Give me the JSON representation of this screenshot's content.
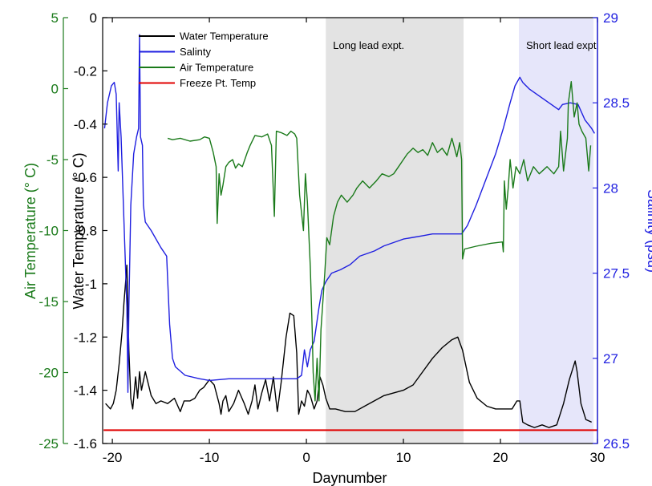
{
  "chart_data": {
    "type": "line",
    "xlabel": "Daynumber",
    "xlim": [
      -21,
      30
    ],
    "xticks": [
      -20,
      -10,
      0,
      10,
      20,
      30
    ],
    "shaded_regions": [
      {
        "label": "Long lead expt.",
        "x": [
          2,
          16.2
        ],
        "color": "#e3e3e3"
      },
      {
        "label": "Short lead expt",
        "x": [
          21.9,
          29.6
        ],
        "color": "#e6e6fa"
      }
    ],
    "axes": {
      "water": {
        "label": "Water Temperature (° C)",
        "ylim": [
          -1.6,
          0
        ],
        "ticks": [
          0,
          -0.2,
          -0.4,
          -0.6,
          -0.8,
          -1,
          -1.2,
          -1.4,
          -1.6
        ],
        "color": "#000000"
      },
      "air": {
        "label": "Air Temperature (° C)",
        "ylim": [
          -25,
          5
        ],
        "ticks": [
          5,
          0,
          -5,
          -10,
          -15,
          -20,
          -25
        ],
        "color": "#1a7a1a"
      },
      "salinity": {
        "label": "Salinity (psu)",
        "ylim": [
          26.5,
          29
        ],
        "ticks": [
          29,
          28.5,
          28,
          27.5,
          27,
          26.5
        ],
        "color": "#1f1fe0"
      }
    },
    "legend": [
      "Water Temperature",
      "Salinty",
      "Air Temperature",
      "Freeze Pt. Temp"
    ],
    "legend_position": "top-left",
    "series": [
      {
        "name": "Water Temperature",
        "axis": "water",
        "color": "#000000",
        "points": [
          [
            -20.7,
            -1.45
          ],
          [
            -20.2,
            -1.47
          ],
          [
            -19.9,
            -1.45
          ],
          [
            -19.6,
            -1.4
          ],
          [
            -19.3,
            -1.3
          ],
          [
            -19,
            -1.18
          ],
          [
            -18.8,
            -1.07
          ],
          [
            -18.6,
            -0.98
          ],
          [
            -18.5,
            -0.93
          ],
          [
            -18.3,
            -1.25
          ],
          [
            -18.1,
            -1.43
          ],
          [
            -17.9,
            -1.47
          ],
          [
            -17.6,
            -1.35
          ],
          [
            -17.4,
            -1.43
          ],
          [
            -17.2,
            -1.33
          ],
          [
            -17,
            -1.4
          ],
          [
            -16.6,
            -1.33
          ],
          [
            -16,
            -1.42
          ],
          [
            -15.5,
            -1.45
          ],
          [
            -15,
            -1.44
          ],
          [
            -14.3,
            -1.45
          ],
          [
            -13.6,
            -1.43
          ],
          [
            -13,
            -1.48
          ],
          [
            -12.6,
            -1.44
          ],
          [
            -12,
            -1.44
          ],
          [
            -11.5,
            -1.43
          ],
          [
            -11,
            -1.4
          ],
          [
            -10.6,
            -1.39
          ],
          [
            -10,
            -1.36
          ],
          [
            -9.5,
            -1.38
          ],
          [
            -9,
            -1.45
          ],
          [
            -8.8,
            -1.49
          ],
          [
            -8.6,
            -1.44
          ],
          [
            -8.3,
            -1.42
          ],
          [
            -8,
            -1.48
          ],
          [
            -7.5,
            -1.45
          ],
          [
            -7,
            -1.4
          ],
          [
            -6.4,
            -1.45
          ],
          [
            -6,
            -1.49
          ],
          [
            -5.6,
            -1.44
          ],
          [
            -5.3,
            -1.38
          ],
          [
            -5,
            -1.47
          ],
          [
            -4.6,
            -1.41
          ],
          [
            -4.2,
            -1.36
          ],
          [
            -3.8,
            -1.44
          ],
          [
            -3.4,
            -1.35
          ],
          [
            -3,
            -1.48
          ],
          [
            -2.6,
            -1.37
          ],
          [
            -2.1,
            -1.2
          ],
          [
            -1.7,
            -1.11
          ],
          [
            -1.3,
            -1.12
          ],
          [
            -1,
            -1.26
          ],
          [
            -0.8,
            -1.49
          ],
          [
            -0.5,
            -1.44
          ],
          [
            -0.2,
            -1.46
          ],
          [
            0.1,
            -1.4
          ],
          [
            0.4,
            -1.42
          ],
          [
            0.8,
            -1.47
          ],
          [
            1.1,
            -1.44
          ],
          [
            1.4,
            -1.35
          ],
          [
            1.7,
            -1.38
          ],
          [
            2,
            -1.43
          ],
          [
            2.4,
            -1.47
          ],
          [
            3,
            -1.47
          ],
          [
            4,
            -1.48
          ],
          [
            5,
            -1.48
          ],
          [
            6,
            -1.46
          ],
          [
            7,
            -1.44
          ],
          [
            8,
            -1.42
          ],
          [
            9,
            -1.41
          ],
          [
            10,
            -1.4
          ],
          [
            11,
            -1.38
          ],
          [
            12,
            -1.33
          ],
          [
            13,
            -1.28
          ],
          [
            14,
            -1.24
          ],
          [
            15,
            -1.21
          ],
          [
            15.6,
            -1.2
          ],
          [
            16.1,
            -1.25
          ],
          [
            16.8,
            -1.37
          ],
          [
            17.6,
            -1.43
          ],
          [
            18.6,
            -1.46
          ],
          [
            19.5,
            -1.47
          ],
          [
            20.4,
            -1.47
          ],
          [
            21.2,
            -1.47
          ],
          [
            21.7,
            -1.44
          ],
          [
            22,
            -1.44
          ],
          [
            22.3,
            -1.52
          ],
          [
            22.8,
            -1.53
          ],
          [
            23.5,
            -1.54
          ],
          [
            24.3,
            -1.53
          ],
          [
            25,
            -1.54
          ],
          [
            25.8,
            -1.53
          ],
          [
            26.5,
            -1.45
          ],
          [
            27.1,
            -1.36
          ],
          [
            27.7,
            -1.29
          ],
          [
            27.9,
            -1.33
          ],
          [
            28.3,
            -1.45
          ],
          [
            28.8,
            -1.51
          ],
          [
            29.4,
            -1.52
          ]
        ]
      },
      {
        "name": "Salinty",
        "axis": "salinity",
        "color": "#1f1fe0",
        "points": [
          [
            -20.8,
            28.35
          ],
          [
            -20.5,
            28.5
          ],
          [
            -20.1,
            28.6
          ],
          [
            -19.8,
            28.62
          ],
          [
            -19.6,
            28.55
          ],
          [
            -19.4,
            28.1
          ],
          [
            -19.3,
            28.5
          ],
          [
            -19.1,
            28.3
          ],
          [
            -18.8,
            27.8
          ],
          [
            -18.5,
            27.3
          ],
          [
            -18.4,
            26.8
          ],
          [
            -18.3,
            27.3
          ],
          [
            -18.1,
            27.9
          ],
          [
            -17.8,
            28.2
          ],
          [
            -17.5,
            28.3
          ],
          [
            -17.3,
            28.35
          ],
          [
            -17.2,
            28.9
          ],
          [
            -17.1,
            28.3
          ],
          [
            -16.9,
            28.25
          ],
          [
            -16.8,
            27.9
          ],
          [
            -16.6,
            27.8
          ],
          [
            -16,
            27.75
          ],
          [
            -15,
            27.65
          ],
          [
            -14.4,
            27.6
          ],
          [
            -14.1,
            27.2
          ],
          [
            -13.8,
            27
          ],
          [
            -13.5,
            26.95
          ],
          [
            -12.5,
            26.9
          ],
          [
            -11,
            26.88
          ],
          [
            -10,
            26.87
          ],
          [
            -8,
            26.88
          ],
          [
            -6,
            26.88
          ],
          [
            -4,
            26.88
          ],
          [
            -2,
            26.88
          ],
          [
            -1,
            26.88
          ],
          [
            -0.5,
            26.9
          ],
          [
            -0.2,
            27.05
          ],
          [
            0.1,
            26.95
          ],
          [
            0.4,
            27.05
          ],
          [
            0.8,
            27.1
          ],
          [
            1.3,
            27.3
          ],
          [
            1.6,
            27.4
          ],
          [
            2,
            27.45
          ],
          [
            2.6,
            27.5
          ],
          [
            3.5,
            27.52
          ],
          [
            4.5,
            27.55
          ],
          [
            5.5,
            27.6
          ],
          [
            7,
            27.63
          ],
          [
            8,
            27.66
          ],
          [
            9,
            27.68
          ],
          [
            10,
            27.7
          ],
          [
            11,
            27.71
          ],
          [
            12,
            27.72
          ],
          [
            13,
            27.73
          ],
          [
            14,
            27.73
          ],
          [
            15,
            27.73
          ],
          [
            16,
            27.73
          ],
          [
            16.6,
            27.78
          ],
          [
            17.5,
            27.9
          ],
          [
            18.5,
            28.05
          ],
          [
            19.5,
            28.2
          ],
          [
            20.3,
            28.35
          ],
          [
            21,
            28.5
          ],
          [
            21.5,
            28.6
          ],
          [
            22,
            28.65
          ],
          [
            22.3,
            28.62
          ],
          [
            23,
            28.58
          ],
          [
            24,
            28.54
          ],
          [
            25,
            28.5
          ],
          [
            26,
            28.46
          ],
          [
            26.4,
            28.49
          ],
          [
            27.2,
            28.5
          ],
          [
            28,
            28.49
          ],
          [
            28.7,
            28.4
          ],
          [
            29.4,
            28.35
          ],
          [
            29.7,
            28.32
          ]
        ]
      },
      {
        "name": "Air Temperature",
        "axis": "air",
        "color": "#1a7a1a",
        "points": [
          [
            -14.3,
            -3.5
          ],
          [
            -13.8,
            -3.6
          ],
          [
            -13,
            -3.5
          ],
          [
            -12,
            -3.7
          ],
          [
            -11,
            -3.6
          ],
          [
            -10.5,
            -3.4
          ],
          [
            -10,
            -3.5
          ],
          [
            -9.6,
            -4.5
          ],
          [
            -9.3,
            -5.5
          ],
          [
            -9.2,
            -9.5
          ],
          [
            -9,
            -6
          ],
          [
            -8.8,
            -7.5
          ],
          [
            -8.6,
            -6.8
          ],
          [
            -8.3,
            -5.5
          ],
          [
            -8,
            -5.2
          ],
          [
            -7.6,
            -5
          ],
          [
            -7.3,
            -5.6
          ],
          [
            -7,
            -5.3
          ],
          [
            -6.6,
            -5.5
          ],
          [
            -6.1,
            -4.5
          ],
          [
            -5.8,
            -4
          ],
          [
            -5.3,
            -3.3
          ],
          [
            -4.6,
            -3.4
          ],
          [
            -4,
            -3.2
          ],
          [
            -3.6,
            -4
          ],
          [
            -3.3,
            -9
          ],
          [
            -3.1,
            -3
          ],
          [
            -2.6,
            -3.1
          ],
          [
            -2,
            -3.3
          ],
          [
            -1.6,
            -3
          ],
          [
            -1.2,
            -3.2
          ],
          [
            -1,
            -3.5
          ],
          [
            -0.7,
            -7.5
          ],
          [
            -0.3,
            -10
          ],
          [
            -0.1,
            -6
          ],
          [
            0.1,
            -8
          ],
          [
            0.4,
            -12.5
          ],
          [
            0.6,
            -17
          ],
          [
            0.7,
            -20
          ],
          [
            0.9,
            -22
          ],
          [
            1.1,
            -19
          ],
          [
            1.3,
            -22
          ],
          [
            1.5,
            -17
          ],
          [
            1.7,
            -15
          ],
          [
            1.9,
            -13
          ],
          [
            2.1,
            -10.5
          ],
          [
            2.4,
            -11
          ],
          [
            2.8,
            -9
          ],
          [
            3.2,
            -8
          ],
          [
            3.6,
            -7.5
          ],
          [
            4.2,
            -8
          ],
          [
            4.8,
            -7.5
          ],
          [
            5.2,
            -7
          ],
          [
            5.8,
            -6.5
          ],
          [
            6.5,
            -7
          ],
          [
            7.2,
            -6.5
          ],
          [
            7.8,
            -6
          ],
          [
            8.5,
            -6.2
          ],
          [
            9,
            -6
          ],
          [
            9.5,
            -5.5
          ],
          [
            10,
            -5
          ],
          [
            10.4,
            -4.6
          ],
          [
            11,
            -4.2
          ],
          [
            11.5,
            -4.5
          ],
          [
            12,
            -4.3
          ],
          [
            12.5,
            -4.7
          ],
          [
            13,
            -3.8
          ],
          [
            13.5,
            -4.5
          ],
          [
            14,
            -4.2
          ],
          [
            14.5,
            -4.7
          ],
          [
            15,
            -3.5
          ],
          [
            15.5,
            -4.8
          ],
          [
            15.8,
            -3.8
          ],
          [
            16,
            -5
          ],
          [
            16.1,
            -12
          ],
          [
            16.3,
            -11.3
          ],
          [
            17.5,
            -11.1
          ],
          [
            19,
            -10.9
          ],
          [
            20.2,
            -10.8
          ],
          [
            20.3,
            -11.5
          ],
          [
            20.4,
            -6.5
          ],
          [
            20.6,
            -8.5
          ],
          [
            20.8,
            -7
          ],
          [
            21,
            -5
          ],
          [
            21.3,
            -7
          ],
          [
            21.6,
            -5.5
          ],
          [
            22,
            -6
          ],
          [
            22.4,
            -5
          ],
          [
            22.8,
            -6.5
          ],
          [
            23.4,
            -5.5
          ],
          [
            24,
            -6
          ],
          [
            24.8,
            -5.5
          ],
          [
            25.5,
            -6
          ],
          [
            26,
            -5.5
          ],
          [
            26.2,
            -3
          ],
          [
            26.5,
            -5.8
          ],
          [
            26.9,
            -3.5
          ],
          [
            27,
            -1
          ],
          [
            27.3,
            0.5
          ],
          [
            27.6,
            -2
          ],
          [
            27.9,
            -1
          ],
          [
            28.1,
            -2.5
          ],
          [
            28.4,
            -3
          ],
          [
            28.8,
            -3.5
          ],
          [
            29.1,
            -5.8
          ],
          [
            29.3,
            -4
          ]
        ]
      },
      {
        "name": "Freeze Pt. Temp",
        "axis": "water",
        "color": "#e00000",
        "points": [
          [
            -20.9,
            -1.55
          ],
          [
            30,
            -1.55
          ]
        ]
      }
    ]
  }
}
